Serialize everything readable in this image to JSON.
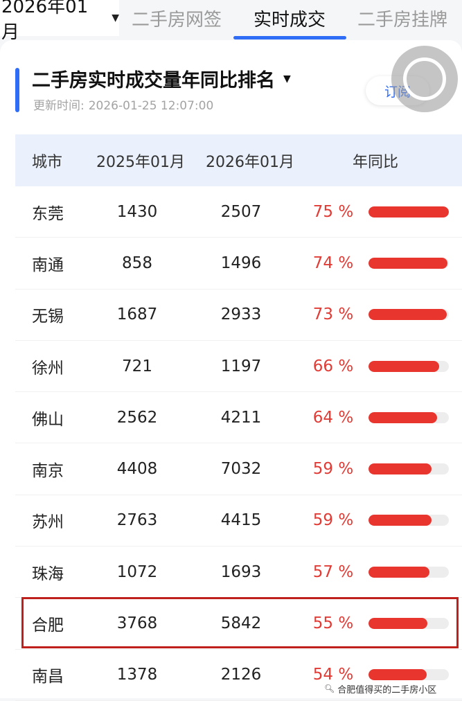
{
  "topbar": {
    "month": "2026年01月",
    "tabs": [
      {
        "label": "二手房网签",
        "active": false
      },
      {
        "label": "实时成交",
        "active": true
      },
      {
        "label": "二手房挂牌",
        "active": false
      }
    ]
  },
  "card": {
    "title": "二手房实时成交量年同比排名",
    "updated_label": "更新时间:",
    "updated_time": "2026-01-25 12:07:00",
    "subscribe_label": "订阅"
  },
  "table": {
    "headers": {
      "city": "城市",
      "a": "2025年01月",
      "b": "2026年01月",
      "c": "年同比"
    },
    "rows": [
      {
        "city": "东莞",
        "v2025": "1430",
        "v2026": "2507",
        "yoy": "75 %",
        "yoy_value": 75
      },
      {
        "city": "南通",
        "v2025": "858",
        "v2026": "1496",
        "yoy": "74 %",
        "yoy_value": 74
      },
      {
        "city": "无锡",
        "v2025": "1687",
        "v2026": "2933",
        "yoy": "73 %",
        "yoy_value": 73
      },
      {
        "city": "徐州",
        "v2025": "721",
        "v2026": "1197",
        "yoy": "66 %",
        "yoy_value": 66
      },
      {
        "city": "佛山",
        "v2025": "2562",
        "v2026": "4211",
        "yoy": "64 %",
        "yoy_value": 64
      },
      {
        "city": "南京",
        "v2025": "4408",
        "v2026": "7032",
        "yoy": "59 %",
        "yoy_value": 59
      },
      {
        "city": "苏州",
        "v2025": "2763",
        "v2026": "4415",
        "yoy": "59 %",
        "yoy_value": 59
      },
      {
        "city": "珠海",
        "v2025": "1072",
        "v2026": "1693",
        "yoy": "57 %",
        "yoy_value": 57
      },
      {
        "city": "合肥",
        "v2025": "3768",
        "v2026": "5842",
        "yoy": "55 %",
        "yoy_value": 55,
        "highlighted": true
      },
      {
        "city": "南昌",
        "v2025": "1378",
        "v2026": "2126",
        "yoy": "54 %",
        "yoy_value": 54
      }
    ],
    "bar_max_value": 75
  },
  "watermark": {
    "icon": "search-icon",
    "text": "合肥值得买的二手房小区"
  },
  "colors": {
    "accent": "#2f6df6",
    "pct_text": "#e03b35",
    "bar_fill": "#e8352e",
    "highlight_border": "#c0201c"
  }
}
